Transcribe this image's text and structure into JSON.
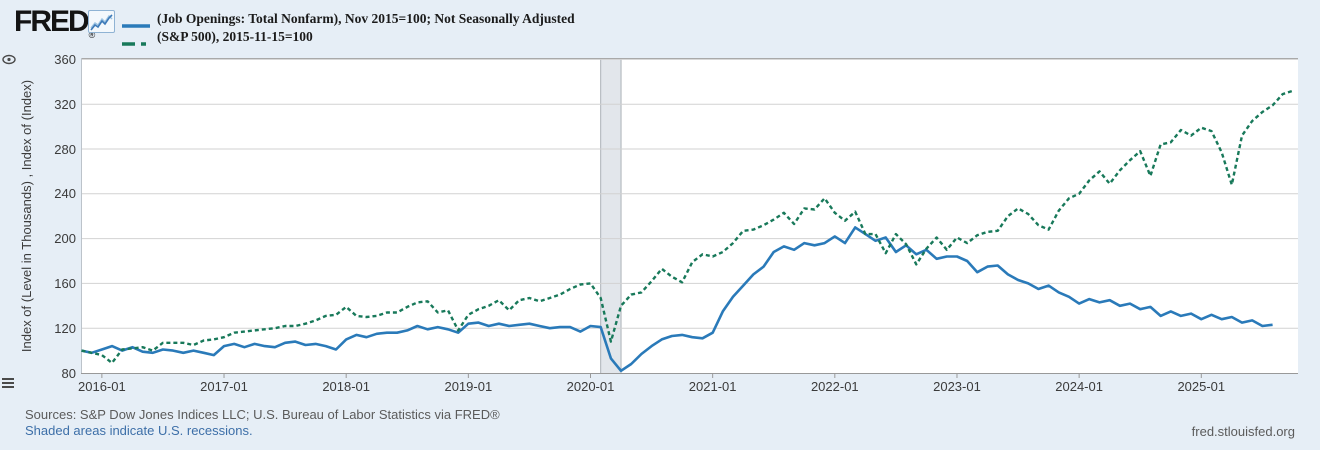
{
  "header": {
    "logo_text": "FRED",
    "logo_registered": "®"
  },
  "footer": {
    "sources_line": "Sources: S&P Dow Jones Indices LLC; U.S. Bureau of Labor Statistics via FRED®",
    "shaded_note": "Shaded areas indicate U.S. recessions.",
    "site_url": "fred.stlouisfed.org"
  },
  "chart_data": {
    "type": "line",
    "title": "",
    "y_axis_label": "Index of (Level in Thousands) , Index of (Index)",
    "x_start_month": "2015-11",
    "x_tick_labels": [
      "2016-01",
      "2017-01",
      "2018-01",
      "2019-01",
      "2020-01",
      "2021-01",
      "2022-01",
      "2023-01",
      "2024-01",
      "2025-01"
    ],
    "x_tick_month_offsets": [
      2,
      14,
      26,
      38,
      50,
      62,
      74,
      86,
      98,
      110
    ],
    "y_ticks": [
      80,
      120,
      160,
      200,
      240,
      280,
      320,
      360
    ],
    "ylim": [
      80,
      361
    ],
    "grid": true,
    "legend_position": "top-left",
    "recession_shading": {
      "note": "U.S. recession",
      "start": "2020-02",
      "end": "2020-04",
      "start_month_offset": 51,
      "end_month_offset": 53,
      "fill": "#e2e6eb",
      "edge_color": "#abb1b7"
    },
    "series": [
      {
        "name": "(Job Openings: Total Nonfarm), Nov 2015=100; Not Seasonally Adjusted",
        "color": "#2a7ab9",
        "style": "solid",
        "frequency": "monthly",
        "start_month_offset": 0,
        "values": [
          100,
          98,
          101,
          104,
          100,
          103,
          99,
          98,
          101,
          100,
          98,
          100,
          98,
          96,
          104,
          106,
          103,
          106,
          104,
          103,
          107,
          108,
          105,
          106,
          104,
          101,
          110,
          114,
          112,
          115,
          116,
          116,
          118,
          122,
          119,
          121,
          119,
          116,
          124,
          125,
          122,
          124,
          122,
          123,
          124,
          122,
          120,
          121,
          121,
          117,
          122,
          121,
          93,
          82,
          88,
          97,
          104,
          110,
          113,
          114,
          112,
          111,
          116,
          135,
          148,
          158,
          168,
          175,
          188,
          193,
          190,
          196,
          194,
          196,
          202,
          196,
          210,
          204,
          198,
          201,
          188,
          194,
          186,
          190,
          182,
          184,
          184,
          180,
          170,
          175,
          176,
          168,
          163,
          160,
          155,
          158,
          152,
          148,
          142,
          146,
          143,
          145,
          140,
          142,
          137,
          139,
          131,
          135,
          131,
          133,
          128,
          132,
          128,
          130,
          125,
          127,
          122,
          123
        ]
      },
      {
        "name": "(S&P 500), 2015-11-15=100",
        "color": "#18795a",
        "style": "dashed",
        "frequency": "monthly",
        "start_month_offset": 0,
        "values": [
          100,
          98,
          96,
          89,
          101,
          102,
          103,
          100,
          107,
          107,
          107,
          105,
          109,
          110,
          112,
          116,
          117,
          118,
          119,
          120,
          122,
          122,
          124,
          127,
          131,
          132,
          139,
          131,
          130,
          131,
          134,
          134,
          139,
          143,
          144,
          134,
          136,
          118,
          132,
          137,
          140,
          145,
          136,
          145,
          147,
          144,
          147,
          150,
          155,
          159,
          160,
          147,
          108,
          140,
          150,
          152,
          162,
          173,
          166,
          161,
          179,
          186,
          184,
          188,
          196,
          207,
          208,
          212,
          217,
          223,
          213,
          227,
          226,
          236,
          223,
          216,
          224,
          204,
          204,
          187,
          204,
          195,
          177,
          191,
          201,
          190,
          201,
          196,
          203,
          206,
          207,
          220,
          227,
          222,
          212,
          208,
          225,
          236,
          240,
          252,
          260,
          249,
          261,
          270,
          278,
          256,
          284,
          286,
          297,
          292,
          299,
          296,
          277,
          248,
          292,
          305,
          313,
          319,
          329,
          332
        ]
      }
    ]
  }
}
